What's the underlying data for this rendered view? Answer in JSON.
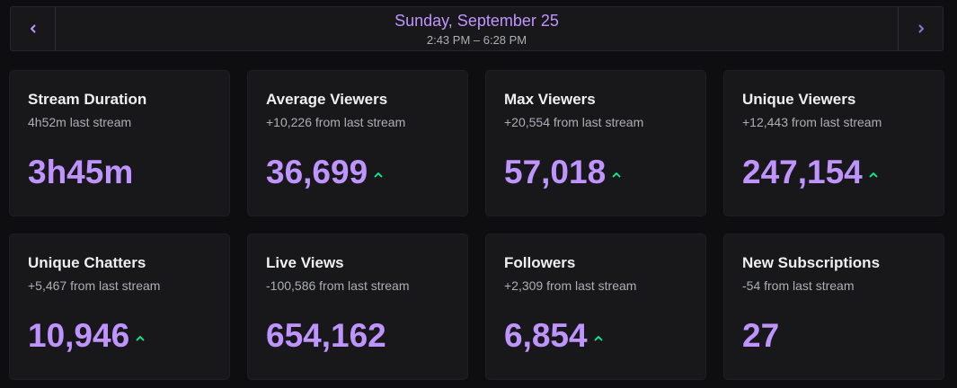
{
  "header": {
    "date": "Sunday, September 25",
    "time_range": "2:43 PM – 6:28 PM",
    "prev_icon": "chevron-left-icon",
    "next_icon": "chevron-right-icon"
  },
  "colors": {
    "background": "#0e0e10",
    "card": "#18181b",
    "accent": "#bf94ff",
    "trend_up": "#00f593",
    "text_primary": "#efeff1",
    "text_secondary": "#adadb8"
  },
  "stats": [
    {
      "title": "Stream Duration",
      "subtitle": "4h52m last stream",
      "value": "3h45m",
      "trend": "none"
    },
    {
      "title": "Average Viewers",
      "subtitle": "+10,226 from last stream",
      "value": "36,699",
      "trend": "up"
    },
    {
      "title": "Max Viewers",
      "subtitle": "+20,554 from last stream",
      "value": "57,018",
      "trend": "up"
    },
    {
      "title": "Unique Viewers",
      "subtitle": "+12,443 from last stream",
      "value": "247,154",
      "trend": "up"
    },
    {
      "title": "Unique Chatters",
      "subtitle": "+5,467 from last stream",
      "value": "10,946",
      "trend": "up"
    },
    {
      "title": "Live Views",
      "subtitle": "-100,586 from last stream",
      "value": "654,162",
      "trend": "none"
    },
    {
      "title": "Followers",
      "subtitle": "+2,309 from last stream",
      "value": "6,854",
      "trend": "up"
    },
    {
      "title": "New Subscriptions",
      "subtitle": "-54 from last stream",
      "value": "27",
      "trend": "none"
    }
  ]
}
